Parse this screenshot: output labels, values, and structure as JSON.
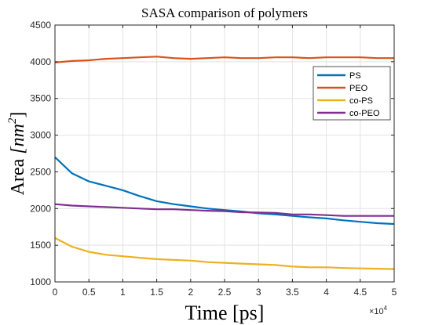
{
  "chart_data": {
    "type": "line",
    "title": "SASA comparison of polymers",
    "xlabel": "Time [ps]",
    "ylabel": {
      "base": "Area ",
      "unit_open": "[nm",
      "unit_exp": "2",
      "unit_close": "]"
    },
    "x_multiplier": {
      "base": "×10",
      "exp": "4"
    },
    "xlim": [
      0,
      50000
    ],
    "ylim": [
      1000,
      4500
    ],
    "xticks": [
      0,
      5000,
      10000,
      15000,
      20000,
      25000,
      30000,
      35000,
      40000,
      45000,
      50000
    ],
    "xtick_labels": [
      "0",
      "0.5",
      "1",
      "1.5",
      "2",
      "2.5",
      "3",
      "3.5",
      "4",
      "4.5",
      "5"
    ],
    "yticks": [
      1000,
      1500,
      2000,
      2500,
      3000,
      3500,
      4000,
      4500
    ],
    "ytick_labels": [
      "1000",
      "1500",
      "2000",
      "2500",
      "3000",
      "3500",
      "4000",
      "4500"
    ],
    "grid": true,
    "legend_position": "top-right",
    "x": [
      0,
      2500,
      5000,
      7500,
      10000,
      12500,
      15000,
      17500,
      20000,
      22500,
      25000,
      27500,
      30000,
      32500,
      35000,
      37500,
      40000,
      42500,
      45000,
      47500,
      50000
    ],
    "series": [
      {
        "name": "PS",
        "color": "#0072BD",
        "values": [
          2700,
          2480,
          2370,
          2310,
          2250,
          2170,
          2100,
          2060,
          2030,
          2000,
          1980,
          1960,
          1935,
          1920,
          1900,
          1880,
          1865,
          1840,
          1820,
          1800,
          1790
        ]
      },
      {
        "name": "PEO",
        "color": "#D95319",
        "values": [
          3990,
          4010,
          4020,
          4040,
          4050,
          4060,
          4070,
          4050,
          4040,
          4050,
          4060,
          4050,
          4050,
          4060,
          4060,
          4050,
          4060,
          4060,
          4060,
          4050,
          4050
        ]
      },
      {
        "name": "co-PS",
        "color": "#EDB120",
        "values": [
          1600,
          1480,
          1410,
          1370,
          1350,
          1330,
          1310,
          1300,
          1290,
          1270,
          1260,
          1250,
          1240,
          1230,
          1210,
          1200,
          1200,
          1190,
          1185,
          1180,
          1175
        ]
      },
      {
        "name": "co-PEO",
        "color": "#7E2F8E",
        "values": [
          2060,
          2040,
          2030,
          2020,
          2010,
          2000,
          1990,
          1990,
          1980,
          1970,
          1965,
          1950,
          1945,
          1940,
          1920,
          1920,
          1910,
          1900,
          1900,
          1900,
          1900
        ]
      }
    ]
  }
}
